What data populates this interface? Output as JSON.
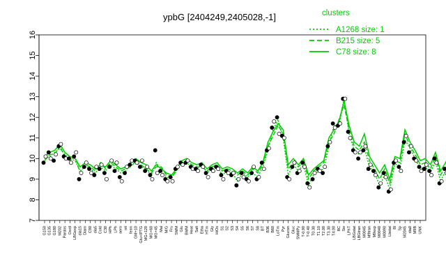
{
  "chart_data": {
    "type": "line",
    "title": "ypbG [2404249,2405028,-1]",
    "xlabel": "",
    "ylabel": "",
    "ylim": [
      7,
      16
    ],
    "yticks": [
      7,
      8,
      9,
      10,
      11,
      12,
      13,
      14,
      15,
      16
    ],
    "grid": false,
    "legend": {
      "title": "clusters",
      "placement": "top-right",
      "entries": [
        {
          "label": "A1268 size: 1",
          "style": "dotted"
        },
        {
          "label": "B215 size: 5",
          "style": "dashed"
        },
        {
          "label": "C78 size: 8",
          "style": "solid"
        }
      ]
    },
    "colors": {
      "series": "#00cc00",
      "points": "#000000",
      "axis": "#000000"
    },
    "x_tick_labels": [
      "G150",
      "G135",
      "G180",
      "M202",
      "Pardos",
      "Oxctl",
      "LBGexp",
      "dia15",
      "Diam",
      "C90",
      "dia5",
      "Cold",
      "C30",
      "HPh",
      "LPh",
      "aero",
      "nit",
      "ferm",
      "GM+10",
      "Glu+IPTG",
      "MG+120",
      "MG+60",
      "MG+45",
      "Mal",
      "M/G",
      "Fru",
      "SMM",
      "Glu",
      "BMM",
      "Heat",
      "Salt",
      "Etha",
      "HTm",
      "Gly",
      "HiOs",
      "S1",
      "S2",
      "S3",
      "S4",
      "S5",
      "S6",
      "S7",
      "S8",
      "BT",
      "B36",
      "B60",
      "LoTm",
      "Pyr",
      "Glucon",
      "Gluc",
      "SMMPy",
      "T-0.90",
      "T-0.40",
      "T0.30",
      "T1.10",
      "T2.00",
      "T3.30",
      "T4.00",
      "BC",
      "Sw",
      "LPhT",
      "LBGstat",
      "LBGtran",
      "M0045",
      "M9tran",
      "M9exp",
      "M0040",
      "M0090",
      "Lbstat",
      "Bl",
      "Sp",
      "M2045",
      "dia0",
      "M9B",
      "UNK"
    ],
    "points": [
      [
        1,
        9.8
      ],
      [
        1,
        10.1
      ],
      [
        2,
        10.3
      ],
      [
        2,
        10.0
      ],
      [
        3,
        9.9
      ],
      [
        3,
        10.2
      ],
      [
        4,
        10.6
      ],
      [
        4,
        10.7
      ],
      [
        5,
        10.1
      ],
      [
        5,
        10.0
      ],
      [
        6,
        10.0
      ],
      [
        6,
        9.8
      ],
      [
        7,
        10.1
      ],
      [
        7,
        10.3
      ],
      [
        8,
        9.0
      ],
      [
        8,
        9.3
      ],
      [
        9,
        9.6
      ],
      [
        9,
        9.8
      ],
      [
        10,
        9.5
      ],
      [
        10,
        9.3
      ],
      [
        11,
        9.2
      ],
      [
        11,
        9.6
      ],
      [
        12,
        9.5
      ],
      [
        12,
        9.7
      ],
      [
        13,
        9.3
      ],
      [
        13,
        9.0
      ],
      [
        14,
        9.6
      ],
      [
        14,
        9.9
      ],
      [
        15,
        9.4
      ],
      [
        15,
        9.8
      ],
      [
        16,
        9.1
      ],
      [
        16,
        8.9
      ],
      [
        17,
        9.3
      ],
      [
        17,
        9.6
      ],
      [
        18,
        9.7
      ],
      [
        18,
        9.9
      ],
      [
        19,
        9.9
      ],
      [
        19,
        9.8
      ],
      [
        20,
        9.6
      ],
      [
        20,
        9.9
      ],
      [
        21,
        9.4
      ],
      [
        21,
        9.6
      ],
      [
        22,
        9.2
      ],
      [
        22,
        9.0
      ],
      [
        23,
        10.4
      ],
      [
        23,
        9.3
      ],
      [
        24,
        9.4
      ],
      [
        24,
        9.2
      ],
      [
        25,
        9.0
      ],
      [
        25,
        8.9
      ],
      [
        26,
        9.1
      ],
      [
        26,
        8.9
      ],
      [
        27,
        9.5
      ],
      [
        27,
        9.6
      ],
      [
        28,
        9.8
      ],
      [
        28,
        9.7
      ],
      [
        29,
        9.8
      ],
      [
        29,
        9.9
      ],
      [
        30,
        9.6
      ],
      [
        30,
        9.5
      ],
      [
        31,
        9.5
      ],
      [
        31,
        9.4
      ],
      [
        32,
        9.7
      ],
      [
        32,
        9.6
      ],
      [
        33,
        9.3
      ],
      [
        33,
        9.1
      ],
      [
        34,
        9.5
      ],
      [
        34,
        9.4
      ],
      [
        35,
        9.6
      ],
      [
        35,
        9.5
      ],
      [
        36,
        9.2
      ],
      [
        36,
        9.0
      ],
      [
        37,
        9.4
      ],
      [
        37,
        9.3
      ],
      [
        38,
        9.2
      ],
      [
        38,
        9.3
      ],
      [
        39,
        8.7
      ],
      [
        39,
        9.0
      ],
      [
        40,
        9.3
      ],
      [
        40,
        9.1
      ],
      [
        41,
        9.0
      ],
      [
        41,
        8.9
      ],
      [
        42,
        9.3
      ],
      [
        42,
        9.6
      ],
      [
        43,
        9.0
      ],
      [
        43,
        9.1
      ],
      [
        44,
        9.8
      ],
      [
        44,
        9.5
      ],
      [
        45,
        10.4
      ],
      [
        45,
        10.5
      ],
      [
        46,
        11.5
      ],
      [
        46,
        11.8
      ],
      [
        47,
        12.0
      ],
      [
        47,
        11.2
      ],
      [
        48,
        11.1
      ],
      [
        48,
        11.0
      ],
      [
        49,
        9.1
      ],
      [
        49,
        9.0
      ],
      [
        50,
        9.6
      ],
      [
        50,
        9.8
      ],
      [
        51,
        9.3
      ],
      [
        51,
        9.4
      ],
      [
        52,
        9.8
      ],
      [
        52,
        9.6
      ],
      [
        53,
        8.8
      ],
      [
        53,
        8.6
      ],
      [
        54,
        9.0
      ],
      [
        54,
        9.3
      ],
      [
        55,
        9.5
      ],
      [
        55,
        9.4
      ],
      [
        56,
        9.3
      ],
      [
        56,
        9.6
      ],
      [
        57,
        10.6
      ],
      [
        57,
        10.8
      ],
      [
        58,
        11.7
      ],
      [
        58,
        11.5
      ],
      [
        59,
        11.6
      ],
      [
        59,
        11.7
      ],
      [
        60,
        12.9
      ],
      [
        60,
        12.9
      ],
      [
        61,
        11.3
      ],
      [
        61,
        11.0
      ],
      [
        62,
        10.4
      ],
      [
        62,
        10.3
      ],
      [
        63,
        10.0
      ],
      [
        63,
        10.3
      ],
      [
        64,
        10.4
      ],
      [
        64,
        10.6
      ],
      [
        65,
        9.5
      ],
      [
        65,
        9.7
      ],
      [
        66,
        9.4
      ],
      [
        66,
        9.2
      ],
      [
        67,
        8.6
      ],
      [
        67,
        8.8
      ],
      [
        68,
        9.3
      ],
      [
        68,
        9.1
      ],
      [
        69,
        8.4
      ],
      [
        69,
        8.5
      ],
      [
        70,
        9.8
      ],
      [
        70,
        9.9
      ],
      [
        71,
        9.6
      ],
      [
        71,
        9.4
      ],
      [
        72,
        10.8
      ],
      [
        72,
        11.1
      ],
      [
        73,
        10.3
      ],
      [
        73,
        10.6
      ],
      [
        74,
        10.0
      ],
      [
        74,
        9.9
      ],
      [
        75,
        9.6
      ],
      [
        75,
        9.4
      ],
      [
        76,
        9.5
      ],
      [
        76,
        9.7
      ],
      [
        77,
        9.4
      ],
      [
        77,
        9.2
      ],
      [
        78,
        10.0
      ],
      [
        78,
        9.8
      ],
      [
        79,
        8.8
      ],
      [
        79,
        8.9
      ],
      [
        80,
        9.5
      ],
      [
        80,
        9.3
      ],
      [
        81,
        9.9
      ],
      [
        81,
        10.0
      ],
      [
        82,
        10.5
      ],
      [
        82,
        10.4
      ],
      [
        83,
        10.2
      ],
      [
        83,
        10.3
      ],
      [
        84,
        9.6
      ],
      [
        84,
        9.8
      ],
      [
        85,
        10.1
      ],
      [
        85,
        9.9
      ],
      [
        86,
        9.3
      ],
      [
        86,
        9.4
      ],
      [
        87,
        9.0
      ],
      [
        87,
        8.7
      ],
      [
        88,
        9.2
      ],
      [
        88,
        9.4
      ],
      [
        89,
        9.5
      ],
      [
        89,
        9.6
      ],
      [
        90,
        9.0
      ],
      [
        90,
        8.9
      ],
      [
        91,
        9.1
      ],
      [
        91,
        8.8
      ],
      [
        92,
        10.2
      ],
      [
        92,
        10.3
      ],
      [
        93,
        10.4
      ],
      [
        93,
        10.1
      ],
      [
        94,
        10.0
      ],
      [
        94,
        10.2
      ]
    ],
    "series": [
      {
        "values": [
          10.0,
          10.1,
          10.3,
          10.5,
          10.2,
          10.0,
          9.9,
          9.4,
          9.6,
          9.5,
          9.3,
          9.6,
          9.4,
          9.7,
          9.5,
          9.3,
          9.4,
          9.9,
          9.8,
          9.6,
          9.5,
          9.2,
          9.8,
          9.4,
          9.1,
          9.0,
          9.6,
          9.7,
          9.8,
          9.6,
          9.5,
          9.7,
          9.3,
          9.5,
          9.6,
          9.2,
          9.4,
          9.3,
          8.9,
          9.3,
          9.1,
          9.3,
          9.1,
          9.6,
          10.4,
          11.4,
          11.9,
          11.0,
          9.2,
          9.7,
          9.4,
          9.7,
          8.7,
          9.2,
          9.4,
          9.5,
          10.6,
          11.6,
          11.6,
          12.9,
          11.2,
          10.4,
          10.2,
          10.5,
          9.6,
          9.3,
          8.7,
          9.2,
          8.5,
          9.8,
          9.5,
          10.9,
          10.5,
          10.0,
          9.5,
          9.6,
          9.3,
          9.9,
          8.9,
          9.4,
          9.9,
          10.4,
          10.2,
          9.7,
          10.0,
          9.3,
          8.9,
          9.3,
          9.5,
          9.0,
          9.0,
          10.2,
          10.2,
          10.1
        ]
      },
      {
        "values": [
          9.9,
          10.2,
          10.2,
          10.6,
          10.1,
          9.9,
          10.1,
          9.3,
          9.7,
          9.6,
          9.4,
          9.8,
          9.5,
          9.8,
          9.6,
          9.4,
          9.5,
          9.6,
          9.9,
          9.7,
          9.5,
          9.3,
          9.6,
          9.6,
          9.2,
          9.1,
          9.4,
          9.8,
          9.9,
          9.7,
          9.6,
          9.6,
          9.4,
          9.6,
          9.7,
          9.4,
          9.5,
          9.4,
          9.2,
          9.4,
          9.2,
          9.5,
          9.3,
          9.7,
          10.6,
          11.1,
          11.6,
          11.2,
          9.5,
          9.8,
          9.6,
          9.9,
          9.0,
          9.4,
          9.6,
          9.8,
          10.8,
          11.2,
          11.9,
          12.6,
          11.4,
          10.6,
          10.4,
          10.8,
          9.9,
          9.5,
          9.0,
          9.5,
          8.8,
          9.9,
          9.8,
          11.2,
          10.6,
          10.2,
          9.7,
          9.8,
          9.5,
          10.1,
          9.2,
          9.6,
          10.1,
          10.6,
          10.4,
          9.9,
          10.1,
          9.6,
          9.2,
          9.5,
          9.7,
          9.2,
          9.3,
          10.3,
          10.4,
          10.2
        ]
      },
      {
        "values": [
          10.1,
          10.3,
          10.4,
          10.7,
          10.3,
          10.1,
          10.0,
          9.6,
          9.8,
          9.7,
          9.5,
          9.7,
          9.6,
          9.9,
          9.7,
          9.5,
          9.6,
          9.8,
          10.0,
          9.8,
          9.7,
          9.4,
          9.7,
          9.5,
          9.3,
          9.2,
          9.5,
          9.9,
          10.0,
          9.8,
          9.7,
          9.8,
          9.5,
          9.7,
          9.8,
          9.5,
          9.6,
          9.5,
          9.3,
          9.5,
          9.3,
          9.6,
          9.4,
          9.8,
          10.8,
          11.3,
          11.7,
          11.4,
          9.7,
          10.0,
          9.7,
          10.0,
          9.2,
          9.5,
          9.7,
          9.9,
          11.0,
          11.4,
          11.8,
          12.8,
          11.6,
          10.8,
          10.6,
          11.2,
          10.1,
          9.7,
          9.3,
          9.7,
          9.0,
          10.1,
          10.0,
          11.4,
          10.8,
          10.4,
          9.9,
          10.0,
          9.7,
          10.3,
          9.4,
          9.8,
          10.3,
          10.8,
          10.6,
          10.1,
          10.3,
          9.8,
          9.4,
          9.7,
          9.9,
          9.4,
          9.5,
          10.5,
          10.5,
          10.3
        ]
      }
    ]
  }
}
